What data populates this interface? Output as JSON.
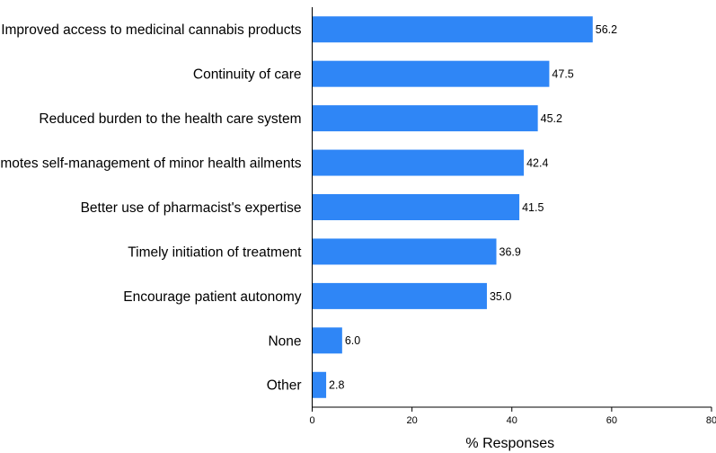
{
  "chart_data": {
    "type": "bar",
    "orientation": "horizontal",
    "categories": [
      "Improved access to medicinal cannabis products",
      "Continuity of care",
      "Reduced burden to the health care system",
      "Promotes self-management of minor health ailments",
      "Better use of pharmacist's expertise",
      "Timely initiation of treatment",
      "Encourage patient autonomy",
      "None",
      "Other"
    ],
    "values": [
      56.2,
      47.5,
      45.2,
      42.4,
      41.5,
      36.9,
      35.0,
      6.0,
      2.8
    ],
    "value_labels": [
      "56.2",
      "47.5",
      "45.2",
      "42.4",
      "41.5",
      "36.9",
      "35.0",
      "6.0",
      "2.8"
    ],
    "xlabel": "% Responses",
    "ylabel": "",
    "xlim": [
      0,
      80
    ],
    "xticks": [
      0,
      20,
      40,
      60,
      80
    ],
    "xtick_labels": [
      "0",
      "20",
      "40",
      "60",
      "80"
    ],
    "grid": false,
    "bar_color": "#2f86f6"
  }
}
